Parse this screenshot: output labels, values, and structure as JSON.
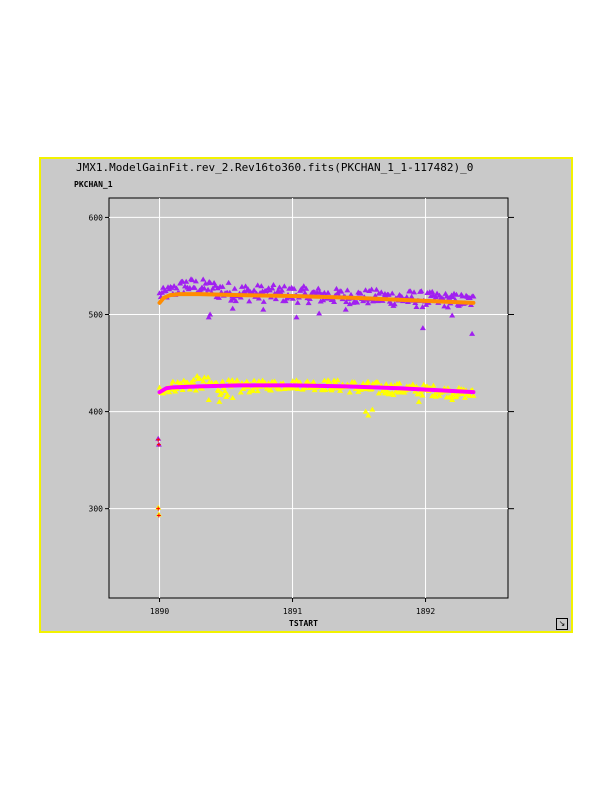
{
  "window": {
    "title": "JMX1.ModelGainFit.rev_2.Rev16to360.fits(PKCHAN_1_1-117482)_0",
    "resize_icon": "resize-corner-icon"
  },
  "colors": {
    "window_background": "#c9c9c9",
    "window_border": "#f2f200",
    "grid": "#ffffff",
    "series_upper_points": "#a020f0",
    "series_upper_fit": "#ff8c00",
    "series_lower_points": "#ffff00",
    "series_lower_fit": "#ff00ff",
    "outlier_cross": "#ff0000"
  },
  "chart_data": {
    "type": "scatter",
    "title": "JMX1.ModelGainFit.rev_2.Rev16to360.fits(PKCHAN_1_1-117482)_0",
    "xlabel": "TSTART",
    "ylabel": "PKCHAN_1",
    "xlim": [
      1889.62,
      1892.62
    ],
    "ylim": [
      208,
      620
    ],
    "x_ticks": [
      1890,
      1891,
      1892
    ],
    "y_ticks": [
      300,
      400,
      500,
      600
    ],
    "grid": true,
    "legend": "none",
    "series": [
      {
        "marker": "triangle",
        "color": "#a020f0",
        "band": {
          "x": [
            1890.0,
            1890.1,
            1890.2,
            1890.3,
            1890.5,
            1890.7,
            1891.0,
            1891.3,
            1891.6,
            1891.9,
            1892.1,
            1892.36
          ],
          "y_center": [
            520,
            524,
            530,
            528,
            524,
            522,
            521,
            519,
            518,
            516,
            515,
            514
          ],
          "y_spread": [
            6,
            8,
            8,
            9,
            10,
            9,
            9,
            8,
            8,
            9,
            8,
            7
          ]
        },
        "dips": [
          [
            1890.37,
            497
          ],
          [
            1890.38,
            500
          ],
          [
            1890.55,
            506
          ],
          [
            1890.78,
            505
          ],
          [
            1891.03,
            497
          ],
          [
            1891.2,
            501
          ],
          [
            1891.4,
            505
          ],
          [
            1891.98,
            486
          ],
          [
            1892.2,
            499
          ],
          [
            1892.35,
            480
          ]
        ]
      },
      {
        "type": "line",
        "color": "#ff8c00",
        "x": [
          1890.0,
          1890.03,
          1890.08,
          1890.15,
          1890.3,
          1890.6,
          1891.0,
          1891.5,
          1892.0,
          1892.36
        ],
        "y": [
          512,
          517,
          520,
          521,
          521,
          520,
          519,
          517,
          514,
          512
        ]
      },
      {
        "marker": "triangle",
        "color": "#ffff00",
        "band": {
          "x": [
            1890.0,
            1890.1,
            1890.2,
            1890.3,
            1890.5,
            1890.7,
            1891.0,
            1891.3,
            1891.6,
            1891.9,
            1892.1,
            1892.36
          ],
          "y_center": [
            422,
            426,
            428,
            429,
            424,
            426,
            428,
            427,
            424,
            423,
            421,
            418
          ],
          "y_spread": [
            5,
            6,
            7,
            8,
            9,
            6,
            5,
            6,
            7,
            6,
            6,
            5
          ]
        },
        "dips": [
          [
            1890.37,
            412
          ],
          [
            1890.45,
            410
          ],
          [
            1890.55,
            414
          ],
          [
            1891.55,
            400
          ],
          [
            1891.57,
            396
          ],
          [
            1891.6,
            402
          ],
          [
            1891.95,
            410
          ],
          [
            1892.2,
            412
          ]
        ]
      },
      {
        "type": "line",
        "color": "#ff00ff",
        "x": [
          1890.0,
          1890.05,
          1890.1,
          1890.3,
          1890.6,
          1891.0,
          1891.4,
          1891.8,
          1892.1,
          1892.36
        ],
        "y": [
          420,
          424,
          425,
          426,
          427,
          427,
          426,
          424,
          422,
          420
        ]
      },
      {
        "type": "outliers",
        "points": [
          [
            1889.99,
            372,
            "triangle",
            "#a020f0"
          ],
          [
            1889.995,
            366,
            "triangle",
            "#a020f0"
          ],
          [
            1889.99,
            301,
            "triangle",
            "#ffff00"
          ],
          [
            1889.995,
            294,
            "triangle",
            "#ffff00"
          ],
          [
            1889.99,
            371,
            "cross",
            "#ff0000"
          ],
          [
            1889.995,
            366,
            "cross",
            "#ff0000"
          ],
          [
            1889.99,
            300,
            "cross",
            "#ff0000"
          ],
          [
            1889.995,
            293,
            "cross",
            "#ff0000"
          ]
        ]
      }
    ]
  }
}
